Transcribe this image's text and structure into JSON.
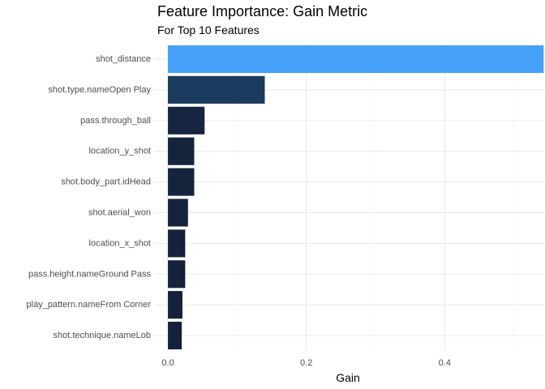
{
  "chart_data": {
    "type": "bar",
    "orientation": "horizontal",
    "title": "Feature Importance: Gain Metric",
    "subtitle": "For Top 10 Features",
    "xlabel": "Gain",
    "ylabel": "",
    "xlim": [
      -0.02,
      0.545
    ],
    "xticks": [
      0.0,
      0.2,
      0.4
    ],
    "xtick_labels": [
      "0.0",
      "0.2",
      "0.4"
    ],
    "grid": true,
    "legend": "none",
    "categories": [
      "shot_distance",
      "shot.type.nameOpen Play",
      "pass.through_ball",
      "location_y_shot",
      "shot.body_part.idHead",
      "shot.aerial_won",
      "location_x_shot",
      "pass.height.nameGround Pass",
      "play_pattern.nameFrom Corner",
      "shot.technique.nameLob"
    ],
    "values": [
      0.543,
      0.14,
      0.053,
      0.038,
      0.038,
      0.029,
      0.025,
      0.025,
      0.021,
      0.02
    ],
    "colors": [
      "#46a1f8",
      "#1b3b5f",
      "#15253f",
      "#14243d",
      "#14243d",
      "#14223c",
      "#14223b",
      "#14223b",
      "#13213b",
      "#13213a"
    ]
  }
}
